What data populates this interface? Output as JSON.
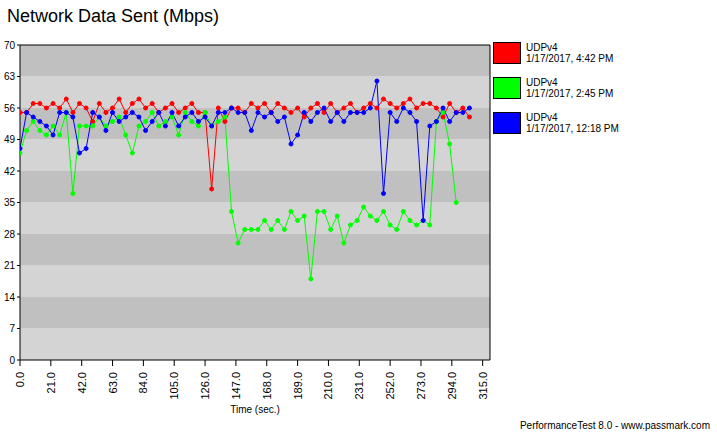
{
  "chart_data": {
    "type": "line",
    "title": "Network Data Sent (Mbps)",
    "x_label": "Time (sec.)",
    "annotations": [
      "PerformanceTest 8.0 - www.passmark.com"
    ],
    "grid": true,
    "legend": "right",
    "marker": "circle",
    "line_style": "solid",
    "x": [
      0,
      4.5,
      9,
      13.5,
      18,
      22.5,
      27,
      31.5,
      36,
      40.5,
      45,
      49.5,
      54,
      58.5,
      63,
      67.5,
      72,
      76.5,
      81,
      85.5,
      90,
      94.5,
      99,
      103.5,
      108,
      112.5,
      117,
      121.5,
      126,
      130.5,
      135,
      139.5,
      144,
      148.5,
      153,
      157.5,
      162,
      166.5,
      171,
      175.5,
      180,
      184.5,
      189,
      193.5,
      198,
      202.5,
      207,
      211.5,
      216,
      220.5,
      225,
      229.5,
      234,
      238.5,
      243,
      247.5,
      252,
      256.5,
      261,
      265.5,
      270,
      274.5,
      279,
      283.5,
      288,
      292.5,
      297,
      301.5,
      306
    ],
    "series": [
      {
        "name": "UDPv4",
        "timestamp": "1/17/2017, 4:42 PM",
        "color": "#ff0000",
        "values": [
          55,
          55,
          57,
          57,
          56,
          57,
          56,
          58,
          55,
          57,
          56,
          53,
          57,
          55,
          56,
          58,
          55,
          57,
          58,
          56,
          57,
          55,
          56,
          57,
          55,
          56,
          57,
          55,
          55,
          38,
          56,
          53,
          56,
          56,
          55,
          57,
          56,
          57,
          55,
          57,
          56,
          55,
          56,
          54,
          56,
          57,
          55,
          57,
          55,
          56,
          57,
          55,
          56,
          57,
          56,
          58,
          57,
          56,
          57,
          58,
          56,
          57,
          57,
          56,
          54,
          57,
          55,
          56,
          54
        ]
      },
      {
        "name": "UDPv4",
        "timestamp": "1/17/2017, 2:45 PM",
        "color": "#00ff00",
        "values": [
          46,
          51,
          53,
          51,
          50,
          52,
          50,
          55,
          37,
          52,
          52,
          52,
          54,
          52,
          53,
          54,
          50,
          46,
          52,
          53,
          55,
          52,
          53,
          54,
          50,
          55,
          53,
          52,
          55,
          52,
          53,
          54,
          33,
          26,
          29,
          29,
          29,
          31,
          29,
          31,
          29,
          33,
          31,
          32,
          18,
          33,
          33,
          29,
          32,
          26,
          30,
          31,
          34,
          32,
          31,
          33,
          30,
          29,
          33,
          31,
          30,
          31,
          30,
          53,
          55,
          48,
          35,
          null,
          null
        ]
      },
      {
        "name": "UDPv4",
        "timestamp": "1/17/2017, 12:18 PM",
        "color": "#0000ff",
        "values": [
          47,
          55,
          54,
          53,
          52,
          50,
          55,
          55,
          54,
          46,
          47,
          55,
          54,
          51,
          55,
          53,
          54,
          55,
          54,
          51,
          53,
          55,
          52,
          55,
          52,
          54,
          55,
          53,
          54,
          52,
          55,
          55,
          56,
          55,
          55,
          51,
          55,
          54,
          55,
          53,
          54,
          48,
          50,
          55,
          53,
          55,
          56,
          53,
          55,
          53,
          55,
          55,
          55,
          56,
          62,
          37,
          55,
          53,
          56,
          55,
          53,
          31,
          52,
          53,
          56,
          53,
          55,
          55,
          56
        ]
      }
    ],
    "xlim": [
      0,
      320
    ],
    "xticks": [
      {
        "value": 0,
        "label": "0.0"
      },
      {
        "value": 21,
        "label": "21.0"
      },
      {
        "value": 42,
        "label": "42.0"
      },
      {
        "value": 63,
        "label": "63.0"
      },
      {
        "value": 84,
        "label": "84.0"
      },
      {
        "value": 105,
        "label": "105.0"
      },
      {
        "value": 126,
        "label": "126.0"
      },
      {
        "value": 147,
        "label": "147.0"
      },
      {
        "value": 168,
        "label": "168.0"
      },
      {
        "value": 189,
        "label": "189.0"
      },
      {
        "value": 210,
        "label": "210.0"
      },
      {
        "value": 231,
        "label": "231.0"
      },
      {
        "value": 252,
        "label": "252.0"
      },
      {
        "value": 273,
        "label": "273.0"
      },
      {
        "value": 294,
        "label": "294.0"
      },
      {
        "value": 315,
        "label": "315.0"
      }
    ],
    "ylim": [
      0,
      70
    ],
    "yticks": [
      0,
      7,
      14,
      21,
      28,
      35,
      42,
      49,
      56,
      63,
      70
    ]
  }
}
